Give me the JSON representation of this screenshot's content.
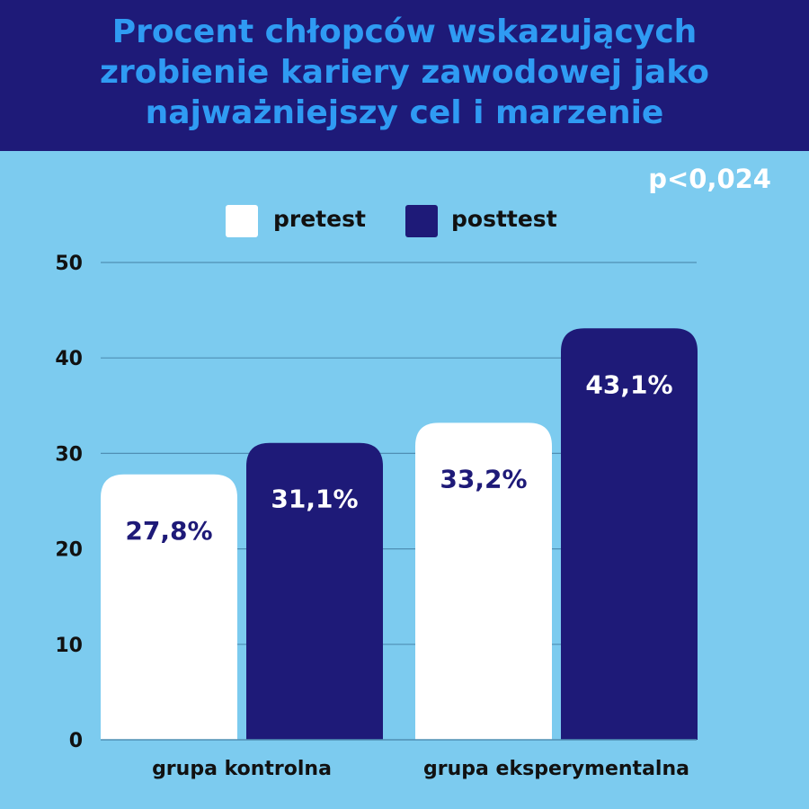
{
  "title_lines": [
    "Procent chłopców wskazujących",
    "zrobienie kariery zawodowej jako",
    "najważniejszy cel i marzenie"
  ],
  "annotation": "p<0,024",
  "colors": {
    "background": "#7ccbef",
    "title_band": "#1e1a78",
    "title_text": "#2f9bf3",
    "pretest": "#ffffff",
    "posttest": "#1e1a78",
    "gridline": "#4f8fb4"
  },
  "chart_data": {
    "type": "bar",
    "title": "Procent chłopców wskazujących zrobienie kariery zawodowej jako najważniejszy cel i marzenie",
    "categories": [
      "grupa kontrolna",
      "grupa eksperymentalna"
    ],
    "series": [
      {
        "name": "pretest",
        "values": [
          27.8,
          33.2
        ],
        "labels": [
          "27,8%",
          "33,2%"
        ]
      },
      {
        "name": "posttest",
        "values": [
          31.1,
          43.1
        ],
        "labels": [
          "31,1%",
          "43,1%"
        ]
      }
    ],
    "ylim": [
      0,
      50
    ],
    "yticks": [
      0,
      10,
      20,
      30,
      40,
      50
    ],
    "grid": true,
    "legend_position": "top"
  }
}
